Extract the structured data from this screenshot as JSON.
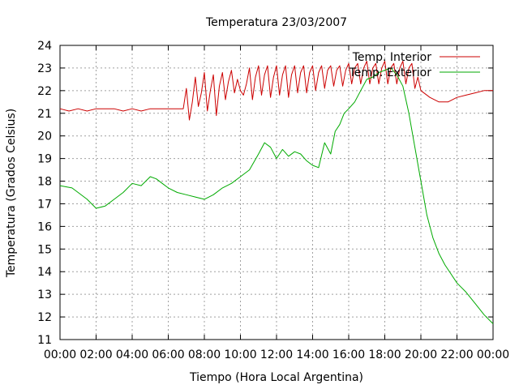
{
  "chart_data": {
    "type": "line",
    "title": "Temperatura 23/03/2007",
    "xlabel": "Tiempo (Hora Local Argentina)",
    "ylabel": "Temperatura (Grados Celsius)",
    "xlim": [
      "00:00",
      "24:00"
    ],
    "ylim": [
      11,
      24
    ],
    "x_ticks": [
      "00:00",
      "02:00",
      "04:00",
      "06:00",
      "08:00",
      "10:00",
      "12:00",
      "14:00",
      "16:00",
      "18:00",
      "20:00",
      "22:00",
      "00:00"
    ],
    "y_ticks": [
      11,
      12,
      13,
      14,
      15,
      16,
      17,
      18,
      19,
      20,
      21,
      22,
      23,
      24
    ],
    "grid": true,
    "legend_position": "top-right",
    "series": [
      {
        "name": "Temp. Interior",
        "color": "#cc0000",
        "x": [
          "00:00",
          "00:30",
          "01:00",
          "01:30",
          "02:00",
          "03:00",
          "03:30",
          "04:00",
          "04:30",
          "05:00",
          "06:00",
          "06:50",
          "07:00",
          "07:10",
          "07:20",
          "07:30",
          "07:40",
          "07:50",
          "08:00",
          "08:10",
          "08:20",
          "08:30",
          "08:40",
          "08:50",
          "09:00",
          "09:10",
          "09:20",
          "09:30",
          "09:40",
          "09:50",
          "10:00",
          "10:10",
          "10:20",
          "10:30",
          "10:40",
          "10:50",
          "11:00",
          "11:10",
          "11:20",
          "11:30",
          "11:40",
          "11:50",
          "12:00",
          "12:10",
          "12:20",
          "12:30",
          "12:40",
          "12:50",
          "13:00",
          "13:10",
          "13:20",
          "13:30",
          "13:40",
          "13:50",
          "14:00",
          "14:10",
          "14:20",
          "14:30",
          "14:40",
          "14:50",
          "15:00",
          "15:10",
          "15:20",
          "15:30",
          "15:40",
          "15:50",
          "16:00",
          "16:10",
          "16:20",
          "16:30",
          "16:40",
          "16:50",
          "17:00",
          "17:10",
          "17:20",
          "17:30",
          "17:40",
          "17:50",
          "18:00",
          "18:10",
          "18:20",
          "18:30",
          "18:40",
          "18:50",
          "19:00",
          "19:10",
          "19:20",
          "19:30",
          "19:40",
          "19:50",
          "20:00",
          "20:30",
          "21:00",
          "21:30",
          "22:00",
          "22:30",
          "23:00",
          "23:30",
          "24:00"
        ],
        "y": [
          21.2,
          21.1,
          21.2,
          21.1,
          21.2,
          21.2,
          21.1,
          21.2,
          21.1,
          21.2,
          21.2,
          21.2,
          22.1,
          20.7,
          21.5,
          22.6,
          21.3,
          21.9,
          22.8,
          21.1,
          22.0,
          22.7,
          20.9,
          22.2,
          22.8,
          21.6,
          22.4,
          22.9,
          21.9,
          22.5,
          22.0,
          21.8,
          22.3,
          23.0,
          21.6,
          22.6,
          23.1,
          21.8,
          22.7,
          23.1,
          21.7,
          22.6,
          23.1,
          21.8,
          22.7,
          23.1,
          21.7,
          22.7,
          23.1,
          21.9,
          22.8,
          23.1,
          21.9,
          22.8,
          23.1,
          22.0,
          22.8,
          23.1,
          22.1,
          22.9,
          23.1,
          22.2,
          22.9,
          23.1,
          22.2,
          22.9,
          23.2,
          22.3,
          23.0,
          23.2,
          22.3,
          23.0,
          23.3,
          22.3,
          23.0,
          23.2,
          22.3,
          23.0,
          23.3,
          22.3,
          23.0,
          23.2,
          22.3,
          23.0,
          23.3,
          22.3,
          23.0,
          23.2,
          22.1,
          22.6,
          22.0,
          21.7,
          21.5,
          21.5,
          21.7,
          21.8,
          21.9,
          22.0,
          22.0
        ]
      },
      {
        "name": "Temp. Exterior",
        "color": "#00aa00",
        "x": [
          "00:00",
          "00:40",
          "01:00",
          "01:30",
          "02:00",
          "02:30",
          "03:00",
          "03:30",
          "04:00",
          "04:30",
          "05:00",
          "05:20",
          "05:40",
          "06:00",
          "06:30",
          "07:00",
          "07:30",
          "08:00",
          "08:30",
          "09:00",
          "09:30",
          "10:00",
          "10:30",
          "11:00",
          "11:20",
          "11:40",
          "12:00",
          "12:20",
          "12:40",
          "13:00",
          "13:20",
          "13:40",
          "14:00",
          "14:20",
          "14:40",
          "15:00",
          "15:15",
          "15:30",
          "15:45",
          "16:00",
          "16:20",
          "16:40",
          "17:00",
          "17:20",
          "17:40",
          "18:00",
          "18:20",
          "18:40",
          "19:00",
          "19:10",
          "19:20",
          "19:40",
          "20:00",
          "20:20",
          "20:40",
          "21:00",
          "21:20",
          "21:40",
          "22:00",
          "22:30",
          "23:00",
          "23:30",
          "24:00"
        ],
        "y": [
          17.8,
          17.7,
          17.5,
          17.2,
          16.8,
          16.9,
          17.2,
          17.5,
          17.9,
          17.8,
          18.2,
          18.1,
          17.9,
          17.7,
          17.5,
          17.4,
          17.3,
          17.2,
          17.4,
          17.7,
          17.9,
          18.2,
          18.5,
          19.2,
          19.7,
          19.5,
          19.0,
          19.4,
          19.1,
          19.3,
          19.2,
          18.9,
          18.7,
          18.6,
          19.7,
          19.2,
          20.2,
          20.5,
          21.0,
          21.2,
          21.5,
          22.0,
          22.5,
          22.6,
          22.8,
          22.9,
          23.0,
          22.7,
          22.2,
          21.6,
          21.0,
          19.5,
          18.0,
          16.5,
          15.5,
          14.8,
          14.3,
          13.9,
          13.5,
          13.1,
          12.6,
          12.1,
          11.7
        ]
      }
    ]
  }
}
